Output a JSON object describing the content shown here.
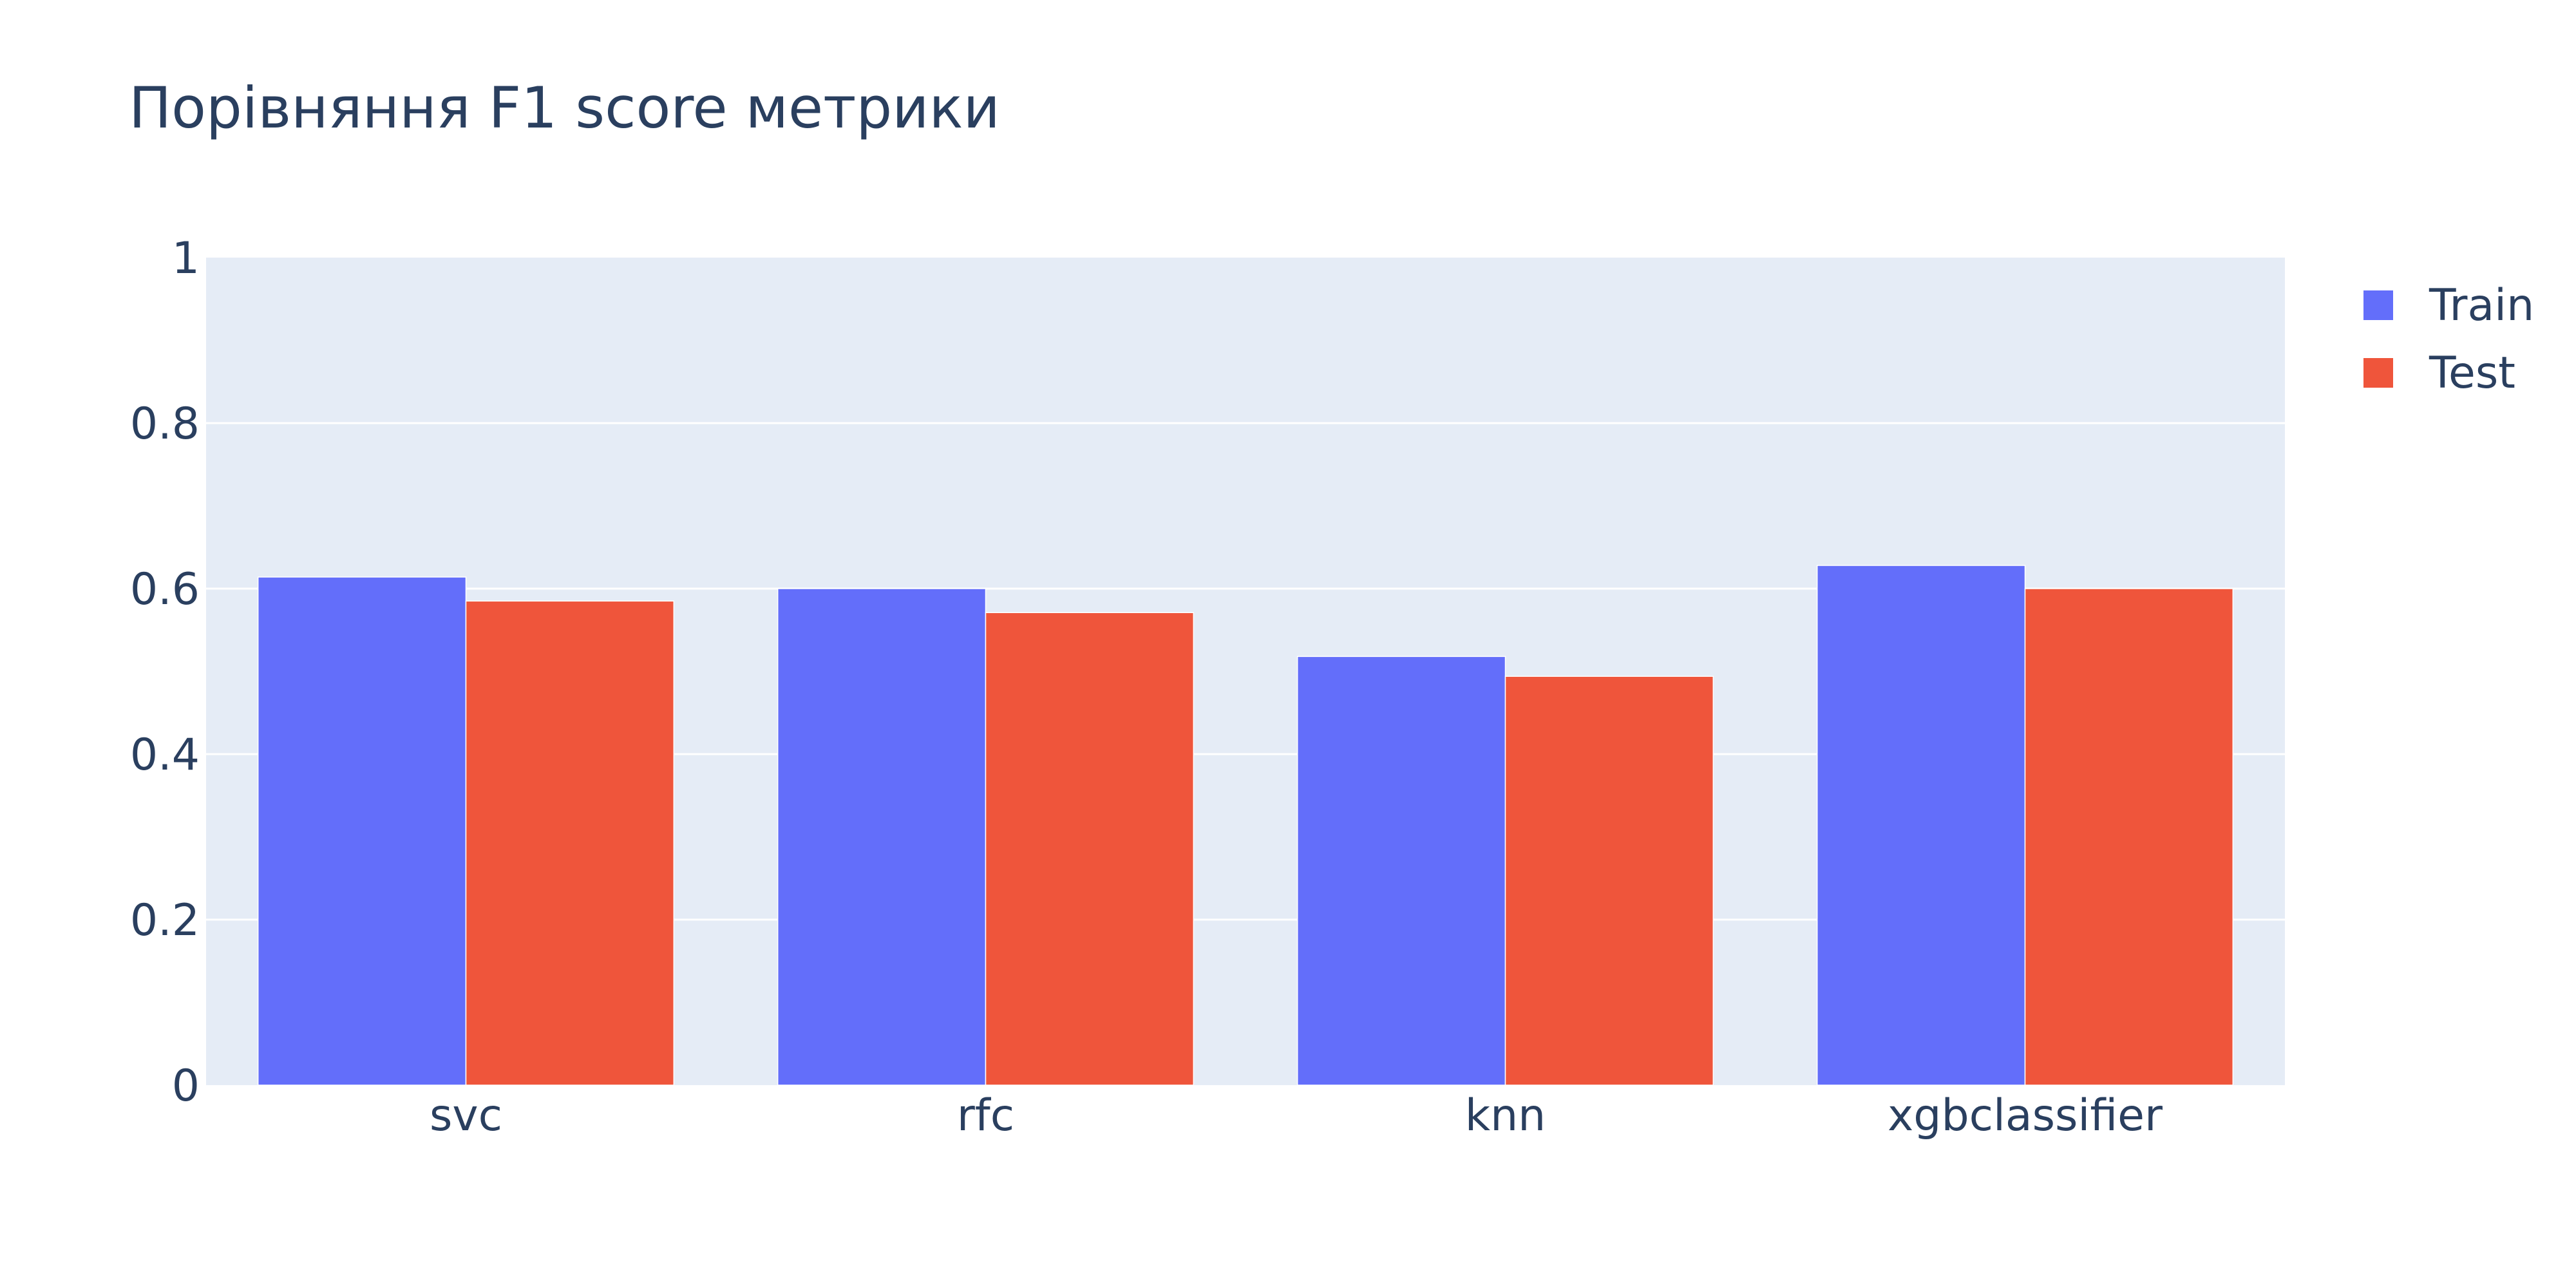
{
  "chart_data": {
    "type": "bar",
    "title": "Порівняння F1 score метрики",
    "xlabel": "",
    "ylabel": "",
    "categories": [
      "svc",
      "rfc",
      "knn",
      "xgbclassifier"
    ],
    "series": [
      {
        "name": "Train",
        "color": "#636efa",
        "values": [
          0.614,
          0.6,
          0.518,
          0.628
        ]
      },
      {
        "name": "Test",
        "color": "#ef553b",
        "values": [
          0.585,
          0.571,
          0.494,
          0.6
        ]
      }
    ],
    "ylim": [
      0,
      1
    ],
    "yticks": [
      {
        "value": 0,
        "label": "0"
      },
      {
        "value": 0.2,
        "label": "0.2"
      },
      {
        "value": 0.4,
        "label": "0.4"
      },
      {
        "value": 0.6,
        "label": "0.6"
      },
      {
        "value": 0.8,
        "label": "0.8"
      },
      {
        "value": 1,
        "label": "1"
      }
    ],
    "grid": true,
    "plot_background": "#e5ecf6",
    "legend_position": "top-right"
  }
}
